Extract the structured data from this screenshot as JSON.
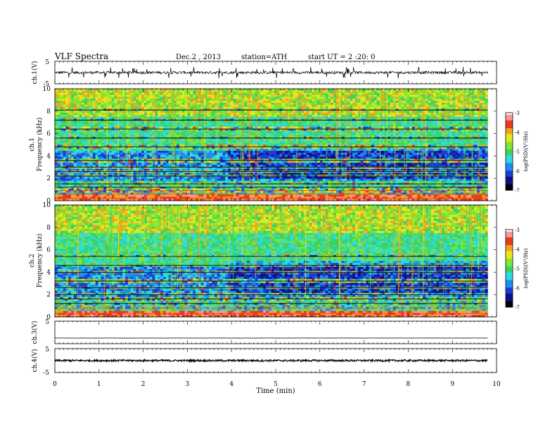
{
  "header": {
    "title": "VLF Spectra",
    "date": "Dec.2 , 2013",
    "station": "station=ATH",
    "start": "start UT = 2 :20: 0"
  },
  "chart_data": [
    {
      "type": "line",
      "panel": "ch1-waveform",
      "ylabel": "ch.1(V)",
      "ylim": [
        -5,
        5
      ],
      "yticks": [
        "5",
        "-5"
      ],
      "xlim": [
        0,
        9.8
      ],
      "baseline": 0,
      "noise_amplitude_v": 0.6,
      "spike_amplitude_v": 2
    },
    {
      "type": "heatmap",
      "panel": "ch1-spectrogram",
      "ylabel_top": "ch.1",
      "ylabel": "Frequency (kHz)",
      "ylim": [
        0,
        10
      ],
      "yticks": [
        "10",
        "8",
        "6",
        "4",
        "2",
        "0"
      ],
      "xlim": [
        0,
        9.8
      ],
      "colorbar": {
        "label": "log(PSD)(V²/Hz)",
        "range": [
          -7,
          -3
        ],
        "ticks": [
          "-3",
          "-4",
          "-5",
          "-6",
          "-7"
        ]
      },
      "bands_khz": [
        0.2,
        0.6,
        0.9,
        1.2,
        1.5,
        2.2,
        2.6,
        3.0,
        3.6,
        4.8,
        5.6,
        6.4,
        7.2,
        8.1
      ]
    },
    {
      "type": "heatmap",
      "panel": "ch2-spectrogram",
      "ylabel_top": "ch.2",
      "ylabel": "Frequency (kHz)",
      "ylim": [
        0,
        10
      ],
      "yticks": [
        "10",
        "8",
        "6",
        "4",
        "2",
        "0"
      ],
      "xlim": [
        0,
        9.8
      ],
      "colorbar": {
        "label": "log(PSD)(V²/Hz)",
        "range": [
          -7,
          -3
        ],
        "ticks": [
          "-3",
          "-4",
          "-5",
          "-6",
          "-7"
        ]
      },
      "bands_khz": [
        0.3,
        0.8,
        1.2,
        1.6,
        2.0,
        2.6,
        3.2,
        4.0,
        4.6,
        5.4
      ]
    },
    {
      "type": "line",
      "panel": "ch3-waveform",
      "ylabel": "ch.3(V)",
      "ylim": [
        -5,
        5
      ],
      "yticks": [
        "5"
      ],
      "xlim": [
        0,
        9.8
      ],
      "baseline": -2.5,
      "noise_amplitude_v": 0.05
    },
    {
      "type": "line",
      "panel": "ch4-waveform",
      "ylabel": "ch.4(V)",
      "ylim": [
        -5,
        5
      ],
      "yticks": [
        "5",
        "-5"
      ],
      "xlim": [
        0,
        9.8
      ],
      "baseline": 0,
      "noise_amplitude_v": 0.4
    }
  ],
  "xaxis": {
    "label": "Time (min)",
    "range": [
      0,
      10
    ],
    "ticks": [
      "0",
      "1",
      "2",
      "3",
      "4",
      "5",
      "6",
      "7",
      "8",
      "9",
      "10"
    ]
  },
  "colors": {
    "colormap": [
      "#000000",
      "#10108c",
      "#1e3cd2",
      "#1e8cf0",
      "#2ddcdc",
      "#3cd264",
      "#7fe632",
      "#e6e61e",
      "#f5a01e",
      "#e63c1e",
      "#ff9696",
      "#ffffff"
    ]
  }
}
